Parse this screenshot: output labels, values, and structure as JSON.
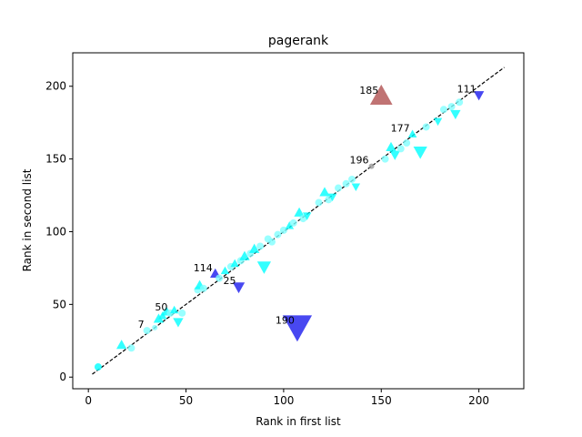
{
  "chart_data": {
    "type": "scatter",
    "title": "pagerank",
    "xlabel": "Rank in first list",
    "ylabel": "Rank in second list",
    "xlim": [
      -8,
      223
    ],
    "ylim": [
      -8,
      223
    ],
    "xticks": [
      0,
      50,
      100,
      150,
      200
    ],
    "yticks": [
      0,
      50,
      100,
      150,
      200
    ],
    "grid": false,
    "reference_line": {
      "from": [
        2,
        2
      ],
      "to": [
        213,
        213
      ],
      "style": "dashed",
      "color": "#000000"
    },
    "points": [
      {
        "x": 5,
        "y": 7,
        "marker": "circle",
        "size": 4,
        "color": "#00ffff"
      },
      {
        "x": 17,
        "y": 22,
        "marker": "triangle-up",
        "size": 6,
        "color": "#00ffff"
      },
      {
        "x": 22,
        "y": 20,
        "marker": "circle",
        "size": 4,
        "color": "#7fffff"
      },
      {
        "x": 30,
        "y": 32,
        "marker": "circle",
        "size": 4,
        "color": "#7fffff"
      },
      {
        "x": 34,
        "y": 34,
        "marker": "circle",
        "size": 3,
        "color": "#7fffff"
      },
      {
        "x": 36,
        "y": 40,
        "marker": "triangle-up",
        "size": 6,
        "color": "#00ffff"
      },
      {
        "x": 38,
        "y": 42,
        "marker": "triangle-up",
        "size": 5,
        "color": "#00ffff"
      },
      {
        "x": 40,
        "y": 45,
        "marker": "triangle-up",
        "size": 6,
        "color": "#00ffff"
      },
      {
        "x": 42,
        "y": 44,
        "marker": "circle",
        "size": 4,
        "color": "#7fffff"
      },
      {
        "x": 44,
        "y": 46,
        "marker": "triangle-up",
        "size": 5,
        "color": "#00ffff"
      },
      {
        "x": 46,
        "y": 38,
        "marker": "triangle-down",
        "size": 6,
        "color": "#00ffff"
      },
      {
        "x": 48,
        "y": 44,
        "marker": "circle",
        "size": 4,
        "color": "#7fffff"
      },
      {
        "x": 56,
        "y": 60,
        "marker": "circle",
        "size": 4,
        "color": "#7fffff"
      },
      {
        "x": 57,
        "y": 63,
        "marker": "triangle-up",
        "size": 6,
        "color": "#00ffff"
      },
      {
        "x": 59,
        "y": 61,
        "marker": "circle",
        "size": 4,
        "color": "#7fffff"
      },
      {
        "x": 65,
        "y": 71,
        "marker": "triangle-up",
        "size": 6,
        "color": "#1a1aee"
      },
      {
        "x": 67,
        "y": 68,
        "marker": "circle",
        "size": 4,
        "color": "#7fffff"
      },
      {
        "x": 70,
        "y": 73,
        "marker": "triangle-up",
        "size": 5,
        "color": "#00ffff"
      },
      {
        "x": 73,
        "y": 76,
        "marker": "circle",
        "size": 4,
        "color": "#7fffff"
      },
      {
        "x": 75,
        "y": 78,
        "marker": "triangle-up",
        "size": 5,
        "color": "#00ffff"
      },
      {
        "x": 77,
        "y": 62,
        "marker": "triangle-down",
        "size": 7,
        "color": "#1a1aee"
      },
      {
        "x": 78,
        "y": 80,
        "marker": "circle",
        "size": 4,
        "color": "#7fffff"
      },
      {
        "x": 80,
        "y": 83,
        "marker": "triangle-up",
        "size": 6,
        "color": "#00ffff"
      },
      {
        "x": 83,
        "y": 85,
        "marker": "circle",
        "size": 4,
        "color": "#7fffff"
      },
      {
        "x": 85,
        "y": 88,
        "marker": "triangle-up",
        "size": 6,
        "color": "#00ffff"
      },
      {
        "x": 88,
        "y": 90,
        "marker": "circle",
        "size": 4,
        "color": "#7fffff"
      },
      {
        "x": 90,
        "y": 76,
        "marker": "triangle-down",
        "size": 8,
        "color": "#00ffff"
      },
      {
        "x": 92,
        "y": 95,
        "marker": "circle",
        "size": 4,
        "color": "#7fffff"
      },
      {
        "x": 94,
        "y": 93,
        "marker": "circle",
        "size": 4,
        "color": "#7fffff"
      },
      {
        "x": 97,
        "y": 98,
        "marker": "circle",
        "size": 4,
        "color": "#7fffff"
      },
      {
        "x": 100,
        "y": 101,
        "marker": "circle",
        "size": 4,
        "color": "#7fffff"
      },
      {
        "x": 103,
        "y": 104,
        "marker": "triangle-up",
        "size": 5,
        "color": "#00ffff"
      },
      {
        "x": 105,
        "y": 106,
        "marker": "circle",
        "size": 4,
        "color": "#7fffff"
      },
      {
        "x": 107,
        "y": 35,
        "marker": "triangle-down",
        "size": 17,
        "color": "#1a1aee"
      },
      {
        "x": 108,
        "y": 113,
        "marker": "triangle-up",
        "size": 6,
        "color": "#00ffff"
      },
      {
        "x": 110,
        "y": 109,
        "marker": "circle",
        "size": 4,
        "color": "#7fffff"
      },
      {
        "x": 112,
        "y": 111,
        "marker": "triangle-down",
        "size": 5,
        "color": "#00ffff"
      },
      {
        "x": 118,
        "y": 120,
        "marker": "circle",
        "size": 4,
        "color": "#7fffff"
      },
      {
        "x": 121,
        "y": 127,
        "marker": "triangle-up",
        "size": 6,
        "color": "#00ffff"
      },
      {
        "x": 123,
        "y": 122,
        "marker": "circle",
        "size": 4,
        "color": "#7fffff"
      },
      {
        "x": 125,
        "y": 124,
        "marker": "triangle-down",
        "size": 5,
        "color": "#00ffff"
      },
      {
        "x": 128,
        "y": 130,
        "marker": "circle",
        "size": 4,
        "color": "#7fffff"
      },
      {
        "x": 132,
        "y": 133,
        "marker": "circle",
        "size": 4,
        "color": "#7fffff"
      },
      {
        "x": 135,
        "y": 136,
        "marker": "circle",
        "size": 4,
        "color": "#7fffff"
      },
      {
        "x": 137,
        "y": 131,
        "marker": "triangle-down",
        "size": 5,
        "color": "#00ffff"
      },
      {
        "x": 145,
        "y": 145,
        "marker": "circle",
        "size": 3,
        "color": "#999999"
      },
      {
        "x": 150,
        "y": 193,
        "marker": "triangle-up",
        "size": 13,
        "color": "#b05050"
      },
      {
        "x": 152,
        "y": 150,
        "marker": "circle",
        "size": 4,
        "color": "#7fffff"
      },
      {
        "x": 155,
        "y": 158,
        "marker": "triangle-up",
        "size": 6,
        "color": "#00ffff"
      },
      {
        "x": 157,
        "y": 153,
        "marker": "triangle-down",
        "size": 6,
        "color": "#00ffff"
      },
      {
        "x": 160,
        "y": 157,
        "marker": "circle",
        "size": 4,
        "color": "#7fffff"
      },
      {
        "x": 163,
        "y": 161,
        "marker": "circle",
        "size": 4,
        "color": "#7fffff"
      },
      {
        "x": 166,
        "y": 167,
        "marker": "triangle-up",
        "size": 5,
        "color": "#00ffff"
      },
      {
        "x": 170,
        "y": 155,
        "marker": "triangle-down",
        "size": 8,
        "color": "#00ffff"
      },
      {
        "x": 173,
        "y": 172,
        "marker": "circle",
        "size": 4,
        "color": "#7fffff"
      },
      {
        "x": 179,
        "y": 176,
        "marker": "triangle-down",
        "size": 5,
        "color": "#00ffff"
      },
      {
        "x": 182,
        "y": 184,
        "marker": "circle",
        "size": 4,
        "color": "#7fffff"
      },
      {
        "x": 186,
        "y": 186,
        "marker": "circle",
        "size": 4,
        "color": "#7fffff"
      },
      {
        "x": 188,
        "y": 181,
        "marker": "triangle-down",
        "size": 6,
        "color": "#00ffff"
      },
      {
        "x": 190,
        "y": 189,
        "marker": "circle",
        "size": 4,
        "color": "#7fffff"
      },
      {
        "x": 200,
        "y": 194,
        "marker": "triangle-down",
        "size": 6,
        "color": "#1a1aee"
      }
    ],
    "annotations": [
      {
        "text": "7",
        "x": 30,
        "y": 32
      },
      {
        "text": "50",
        "x": 42,
        "y": 44
      },
      {
        "text": "114",
        "x": 65,
        "y": 71
      },
      {
        "text": "25",
        "x": 77,
        "y": 62
      },
      {
        "text": "190",
        "x": 107,
        "y": 35
      },
      {
        "text": "196",
        "x": 145,
        "y": 145
      },
      {
        "text": "185",
        "x": 150,
        "y": 193
      },
      {
        "text": "177",
        "x": 166,
        "y": 167
      },
      {
        "text": "111",
        "x": 200,
        "y": 194
      }
    ]
  }
}
